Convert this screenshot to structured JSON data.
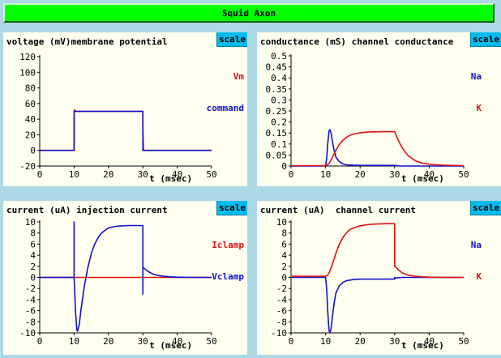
{
  "window": {
    "title": "Squid Axon"
  },
  "ui": {
    "scale_label": "scale"
  },
  "colors": {
    "red": "#dd1111",
    "blue": "#1111cc",
    "background": "#add8e6",
    "panel": "#fffff0",
    "title_bar": "#00ff00",
    "scale_button": "#00bbee"
  },
  "panels": [
    {
      "title": "voltage (mV)membrane potential",
      "legend": [
        "Vm",
        "command"
      ],
      "xlabel": "t (msec)",
      "chart_data": {
        "type": "line",
        "xlim": [
          0,
          50
        ],
        "ylim": [
          -20,
          120
        ],
        "xticks": [
          0,
          10,
          20,
          30,
          40,
          50
        ],
        "yticks": [
          -20,
          0,
          20,
          40,
          60,
          80,
          100,
          120
        ],
        "series": [
          {
            "name": "Vm",
            "color": "#dd1111",
            "x": [
              0,
              10,
              10,
              10.2,
              10.5,
              30,
              30,
              30.2,
              50
            ],
            "y": [
              0,
              0,
              50,
              52,
              50,
              50,
              30,
              0,
              0
            ]
          },
          {
            "name": "command",
            "color": "#1111cc",
            "x": [
              0,
              10,
              10,
              30,
              30,
              50
            ],
            "y": [
              0,
              0,
              50,
              50,
              0,
              0
            ]
          }
        ]
      }
    },
    {
      "title": "conductance (mS) channel conductance",
      "legend": [
        "Na",
        "K"
      ],
      "xlabel": "t (msec)",
      "chart_data": {
        "type": "line",
        "xlim": [
          0,
          50
        ],
        "ylim": [
          0,
          0.5
        ],
        "xticks": [
          0,
          10,
          20,
          30,
          40,
          50
        ],
        "yticks": [
          0,
          0.05,
          0.1,
          0.15,
          0.2,
          0.25,
          0.3,
          0.35,
          0.4,
          0.45,
          0.5
        ],
        "ytick_labels": [
          "0",
          "0.05",
          "0.1",
          "0.15",
          "0.2",
          "0.25",
          "0.3",
          "0.35",
          "0.4",
          "0.45",
          "0.5"
        ],
        "series": [
          {
            "name": "Na",
            "color": "#1111cc",
            "x": [
              0,
              10,
              10.3,
              10.6,
              11,
              11.3,
              11.6,
              12,
              12.5,
              13,
              14,
              15,
              16,
              18,
              20,
              30,
              31,
              32,
              50
            ],
            "y": [
              0,
              0,
              0.03,
              0.1,
              0.16,
              0.165,
              0.15,
              0.11,
              0.07,
              0.04,
              0.02,
              0.01,
              0.006,
              0.004,
              0.003,
              0.003,
              0.001,
              0,
              0
            ]
          },
          {
            "name": "K",
            "color": "#dd1111",
            "x": [
              0,
              10,
              10.5,
              11,
              12,
              13,
              14,
              15,
              16,
              17,
              18,
              20,
              22,
              24,
              26,
              28,
              30,
              31,
              32,
              33,
              34,
              36,
              38,
              40,
              44,
              50
            ],
            "y": [
              0.002,
              0.002,
              0.005,
              0.012,
              0.04,
              0.072,
              0.098,
              0.117,
              0.13,
              0.139,
              0.145,
              0.151,
              0.154,
              0.155,
              0.156,
              0.156,
              0.156,
              0.118,
              0.088,
              0.064,
              0.046,
              0.024,
              0.013,
              0.008,
              0.004,
              0.002
            ]
          }
        ]
      }
    },
    {
      "title": "current (uA) injection current",
      "legend": [
        "Iclamp",
        "Vclamp"
      ],
      "xlabel": "t (msec)",
      "chart_data": {
        "type": "line",
        "xlim": [
          0,
          50
        ],
        "ylim": [
          -10,
          10
        ],
        "xticks": [
          0,
          10,
          20,
          30,
          40,
          50
        ],
        "yticks": [
          -10,
          -8,
          -6,
          -4,
          -2,
          0,
          2,
          4,
          6,
          8,
          10
        ],
        "series": [
          {
            "name": "Iclamp",
            "color": "#dd1111",
            "x": [
              0,
              50
            ],
            "y": [
              0,
              0
            ]
          },
          {
            "name": "Vclamp",
            "color": "#1111cc",
            "x": [
              0,
              10,
              10,
              10,
              10.4,
              10.8,
              11,
              11.5,
              12,
              13,
              14,
              15,
              16,
              17,
              18,
              19,
              20,
              22,
              24,
              26,
              28,
              30,
              30,
              30,
              30.3,
              31,
              32,
              33,
              34,
              36,
              38,
              40,
              44,
              50
            ],
            "y": [
              0,
              0,
              10,
              0,
              -6,
              -9.5,
              -9.7,
              -8.5,
              -5.8,
              -1.5,
              1.8,
              4.3,
              6,
              7.2,
              8,
              8.5,
              8.9,
              9.2,
              9.3,
              9.35,
              9.35,
              9.35,
              -3,
              1.8,
              1.7,
              1.3,
              0.9,
              0.6,
              0.4,
              0.2,
              0.1,
              0.05,
              0,
              0
            ]
          }
        ]
      }
    },
    {
      "title": "current (uA)  channel current",
      "legend": [
        "Na",
        "K"
      ],
      "xlabel": "t (msec)",
      "chart_data": {
        "type": "line",
        "xlim": [
          0,
          50
        ],
        "ylim": [
          -10,
          10
        ],
        "xticks": [
          0,
          10,
          20,
          30,
          40,
          50
        ],
        "yticks": [
          -10,
          -8,
          -6,
          -4,
          -2,
          0,
          2,
          4,
          6,
          8,
          10
        ],
        "series": [
          {
            "name": "Na",
            "color": "#1111cc",
            "x": [
              0,
              10,
              10,
              10.3,
              10.6,
              11,
              11.3,
              11.6,
              12,
              12.5,
              13,
              14,
              15,
              16,
              18,
              20,
              30,
              30,
              30.5,
              32,
              35,
              50
            ],
            "y": [
              0,
              0,
              0,
              -2,
              -6,
              -9.6,
              -10,
              -9.2,
              -7,
              -4.5,
              -2.8,
              -1.5,
              -0.9,
              -0.6,
              -0.4,
              -0.3,
              -0.3,
              0,
              -0.1,
              0,
              0,
              0
            ]
          },
          {
            "name": "K",
            "color": "#dd1111",
            "x": [
              0,
              10,
              10.5,
              11,
              12,
              13,
              14,
              15,
              16,
              17,
              18,
              20,
              22,
              24,
              26,
              28,
              30,
              30,
              30.5,
              31,
              32,
              33,
              34,
              36,
              38,
              40,
              44,
              50
            ],
            "y": [
              0.2,
              0.2,
              0.3,
              0.8,
              2.4,
              4.4,
              6.0,
              7.2,
              8.0,
              8.6,
              8.9,
              9.3,
              9.5,
              9.6,
              9.65,
              9.7,
              9.7,
              2.0,
              1.8,
              1.4,
              0.9,
              0.6,
              0.4,
              0.2,
              0.1,
              0.05,
              0.02,
              0
            ]
          }
        ]
      }
    }
  ]
}
